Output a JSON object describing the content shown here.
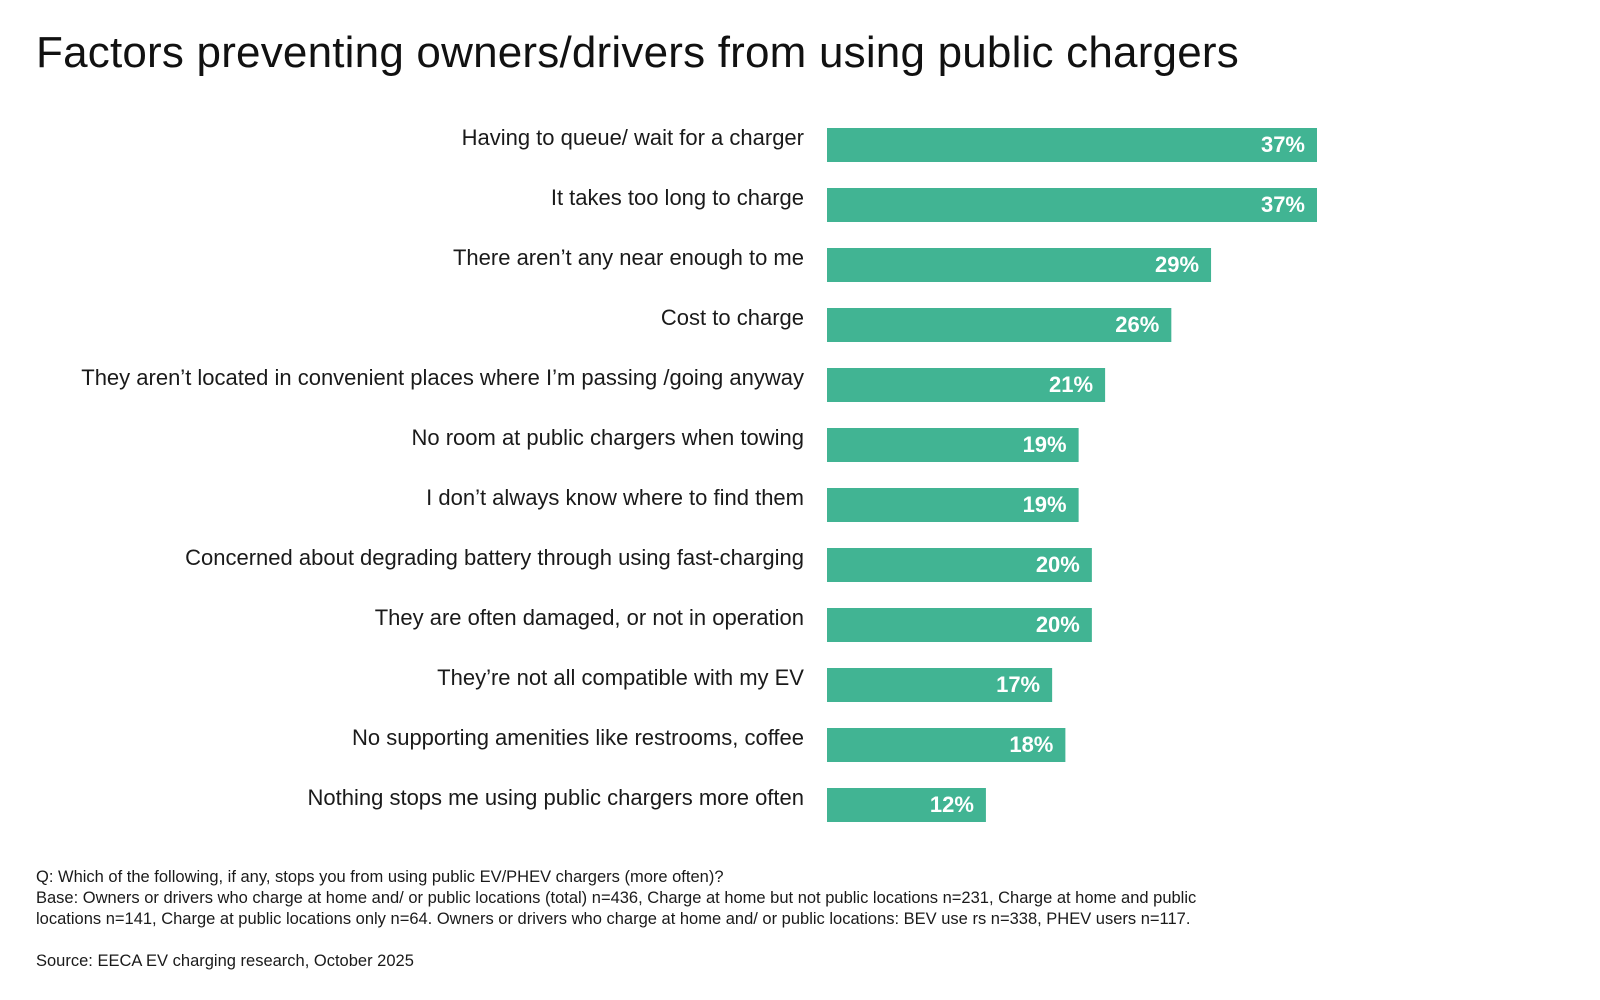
{
  "title": "Factors preventing owners/drivers from using public chargers",
  "colors": {
    "bar": "#41b493",
    "bar_label": "#ffffff",
    "text": "#1a1a1a"
  },
  "chart_data": {
    "type": "bar",
    "orientation": "horizontal",
    "title": "Factors preventing owners/drivers from using public chargers",
    "categories": [
      "Having to queue/ wait for a charger",
      "It takes too long to charge",
      "There aren’t any near enough to me",
      "Cost to charge",
      "They aren’t located in convenient places where I’m passing /going anyway",
      "No room at public chargers when towing",
      "I don’t always know where to find them",
      "Concerned about degrading battery through using fast-charging",
      "They are often damaged, or not in operation",
      "They’re not all compatible with my EV",
      "No supporting amenities like restrooms, coffee",
      "Nothing stops me using public chargers more often"
    ],
    "values": [
      37,
      37,
      29,
      26,
      21,
      19,
      19,
      20,
      20,
      17,
      18,
      12
    ],
    "data_labels": [
      "37%",
      "37%",
      "29%",
      "26%",
      "21%",
      "19%",
      "19%",
      "20%",
      "20%",
      "17%",
      "18%",
      "12%"
    ],
    "unit": "%",
    "xlim": [
      0,
      37
    ],
    "grid": false,
    "legend": "none"
  },
  "notes": {
    "question": "Q: Which of the following, if any, stops you from using public EV/PHEV chargers (more often)?",
    "base_line1": "Base: Owners or drivers who charge at home and/ or public locations (total) n=436, Charge at home but not public locations n=231, Charge at home and public",
    "base_line2": "locations n=141, Charge at public locations only n=64. Owners or drivers who charge at home and/ or public locations: BEV use rs n=338, PHEV users n=117."
  },
  "source": "Source: EECA EV charging research, October 2025"
}
